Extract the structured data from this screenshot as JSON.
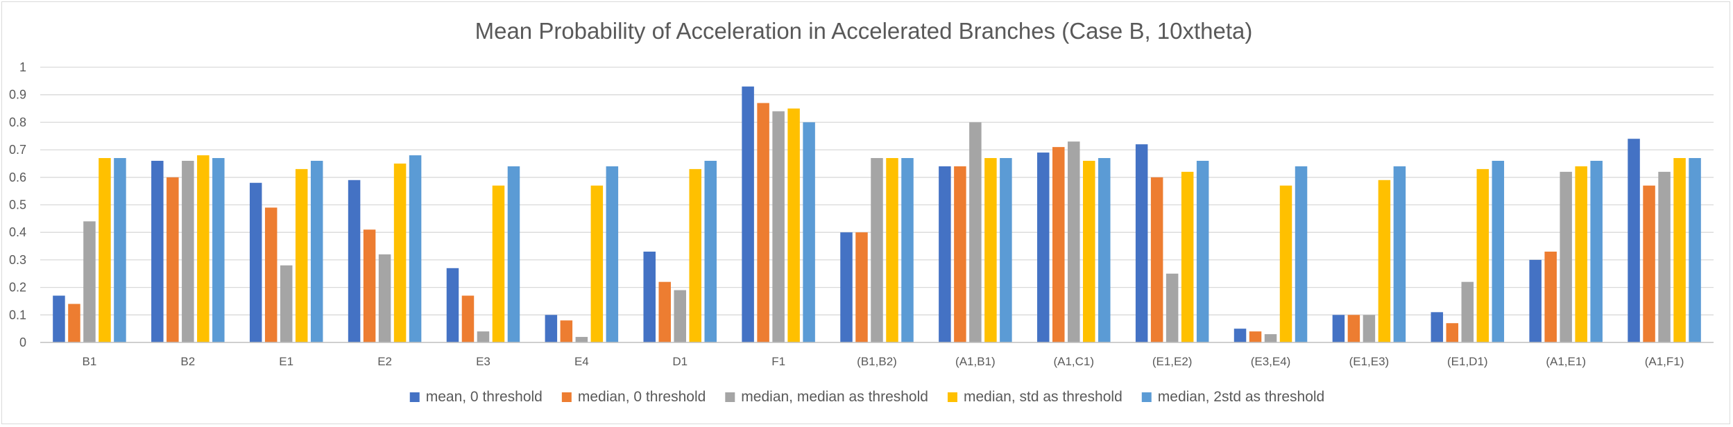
{
  "chart_data": {
    "type": "bar",
    "title": "Mean Probability of Acceleration in Accelerated Branches (Case B, 10xtheta)",
    "xlabel": "",
    "ylabel": "",
    "ylim": [
      0,
      1
    ],
    "yticks": [
      "0",
      "0.1",
      "0.2",
      "0.3",
      "0.4",
      "0.5",
      "0.6",
      "0.7",
      "0.8",
      "0.9",
      "1"
    ],
    "grid": true,
    "legend_position": "bottom",
    "categories": [
      "B1",
      "B2",
      "E1",
      "E2",
      "E3",
      "E4",
      "D1",
      "F1",
      "(B1,B2)",
      "(A1,B1)",
      "(A1,C1)",
      "(E1,E2)",
      "(E3,E4)",
      "(E1,E3)",
      "(E1,D1)",
      "(A1,E1)",
      "(A1,F1)"
    ],
    "series": [
      {
        "name": "mean, 0 threshold",
        "color": "#4472c4",
        "values": [
          0.17,
          0.66,
          0.58,
          0.59,
          0.27,
          0.1,
          0.33,
          0.93,
          0.4,
          0.64,
          0.69,
          0.72,
          0.05,
          0.1,
          0.11,
          0.3,
          0.74
        ]
      },
      {
        "name": "median, 0 threshold",
        "color": "#ed7d31",
        "values": [
          0.14,
          0.6,
          0.49,
          0.41,
          0.17,
          0.08,
          0.22,
          0.87,
          0.4,
          0.64,
          0.71,
          0.6,
          0.04,
          0.1,
          0.07,
          0.33,
          0.57
        ]
      },
      {
        "name": "median, median as threshold",
        "color": "#a5a5a5",
        "values": [
          0.44,
          0.66,
          0.28,
          0.32,
          0.04,
          0.02,
          0.19,
          0.84,
          0.67,
          0.8,
          0.73,
          0.25,
          0.03,
          0.1,
          0.22,
          0.62,
          0.62
        ]
      },
      {
        "name": "median, std as threshold",
        "color": "#ffc000",
        "values": [
          0.67,
          0.68,
          0.63,
          0.65,
          0.57,
          0.57,
          0.63,
          0.85,
          0.67,
          0.67,
          0.66,
          0.62,
          0.57,
          0.59,
          0.63,
          0.64,
          0.67
        ]
      },
      {
        "name": "median, 2std as threshold",
        "color": "#5b9bd5",
        "values": [
          0.67,
          0.67,
          0.66,
          0.68,
          0.64,
          0.64,
          0.66,
          0.8,
          0.67,
          0.67,
          0.67,
          0.66,
          0.64,
          0.64,
          0.66,
          0.66,
          0.67
        ]
      }
    ]
  }
}
